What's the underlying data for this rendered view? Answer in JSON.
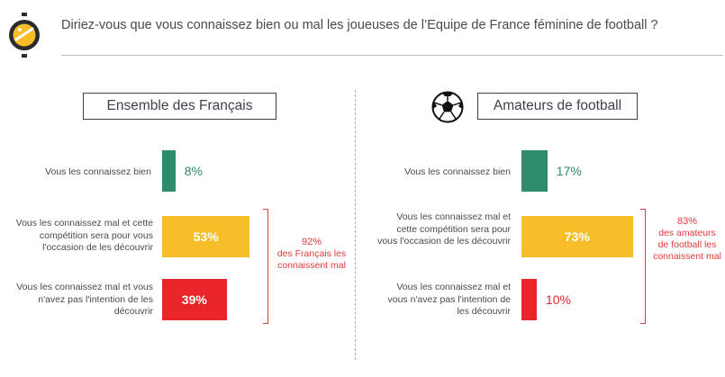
{
  "header": {
    "question": "Diriez-vous que vous connaissez bien ou mal les joueuses de l’Equipe de France féminine de football ?",
    "logo_icon": "coin-logo-icon"
  },
  "colors": {
    "green": "#2e8b6e",
    "yellow": "#f7be2a",
    "red": "#e8262a",
    "accent_red": "#e23a3a"
  },
  "chart_data": [
    {
      "type": "bar",
      "orientation": "horizontal",
      "title": "Ensemble des Français",
      "categories": [
        "Vous les connaissez bien",
        "Vous les connaissez mal et cette compétition sera pour vous l'occasion de les découvrir",
        "Vous les connaissez mal et vous n'avez pas l'intention de les découvrir"
      ],
      "values": [
        8,
        53,
        39
      ],
      "value_labels": [
        "8%",
        "53%",
        "39%"
      ],
      "unit": "%",
      "xlim": [
        0,
        55
      ],
      "summary": {
        "value": "92%",
        "text": "des Français les connaissent mal"
      }
    },
    {
      "type": "bar",
      "orientation": "horizontal",
      "title": "Amateurs de football",
      "title_icon": "soccer-ball-icon",
      "categories": [
        "Vous les connaissez bien",
        "Vous les connaissez mal et cette compétition sera pour vous l'occasion de les découvrir",
        "Vous les connaissez mal et vous n'avez pas l'intention de les découvrir"
      ],
      "values": [
        17,
        73,
        10
      ],
      "value_labels": [
        "17%",
        "73%",
        "10%"
      ],
      "unit": "%",
      "xlim": [
        0,
        75
      ],
      "summary": {
        "value": "83%",
        "text": "des amateurs de football les connaissent mal"
      }
    }
  ]
}
